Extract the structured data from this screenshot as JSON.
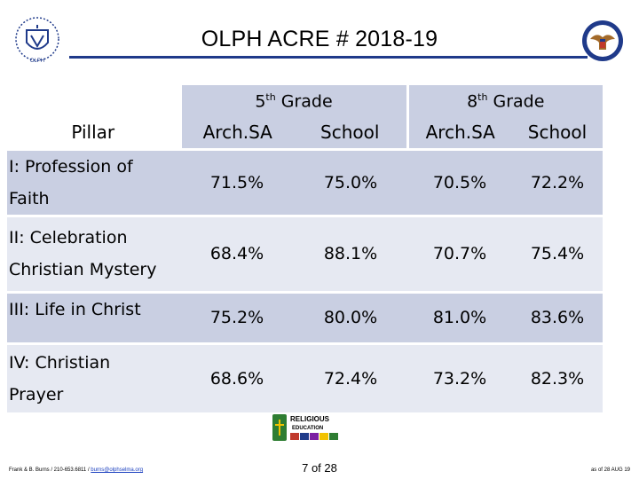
{
  "title": "OLPH ACRE # 2018-19",
  "left_logo": {
    "icon": "school-crest-icon",
    "text": "OLPH"
  },
  "right_logo": {
    "icon": "seal-eagle-icon"
  },
  "table": {
    "pillar_header": "Pillar",
    "grades": [
      {
        "base": "5",
        "suffix": "th",
        "word": "Grade"
      },
      {
        "base": "8",
        "suffix": "th",
        "word": "Grade"
      }
    ],
    "column_headers": [
      "Arch.SA",
      "School",
      "Arch.SA",
      "School"
    ],
    "rows": [
      {
        "pillar": [
          "I: Profession of",
          "Faith"
        ],
        "values": [
          "71.5%",
          "75.0%",
          "70.5%",
          "72.2%"
        ]
      },
      {
        "pillar": [
          "II:  Celebration",
          "Christian Mystery"
        ],
        "values": [
          "68.4%",
          "88.1%",
          "70.7%",
          "75.4%"
        ]
      },
      {
        "pillar": [
          "III:  Life in Christ"
        ],
        "values": [
          "75.2%",
          "80.0%",
          "81.0%",
          "83.6%"
        ]
      },
      {
        "pillar": [
          "IV: Christian",
          "Prayer"
        ],
        "values": [
          "68.6%",
          "72.4%",
          "73.2%",
          "82.3%"
        ]
      }
    ]
  },
  "center_logo": {
    "icon": "religious-education-logo-icon",
    "line1": "RELIGIOUS",
    "line2": "EDUCATION"
  },
  "footer": {
    "contact_prefix": "Frank & B. Burns / 210-653.6811 / ",
    "contact_email": "burns@olphselma.org",
    "page": "7 of 28",
    "as_of": "as of 28 AUG 19"
  },
  "colors": {
    "rule": "#1f3a8a",
    "row_dark": "#c9cfe2",
    "row_light": "#e6e9f2"
  }
}
